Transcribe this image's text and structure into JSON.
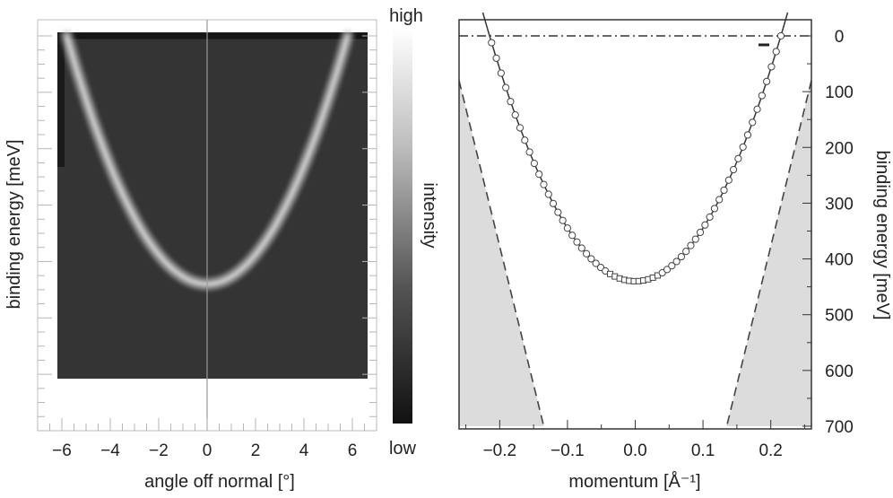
{
  "colorbar": {
    "high_label": "high",
    "low_label": "low",
    "label": "intensity"
  },
  "chart_data": [
    {
      "type": "heatmap",
      "xlabel": "angle off normal [°]",
      "ylabel": "binding energy [meV]",
      "xlim": [
        -7,
        7
      ],
      "ylim": [
        0,
        700
      ],
      "x_ticks": [
        -6,
        -4,
        -2,
        0,
        2,
        4,
        6
      ],
      "x_tick_labels": [
        "−6",
        "−4",
        "−2",
        "0",
        "2",
        "4",
        "6"
      ],
      "band": {
        "minimum_binding_energy": 440,
        "minimum_angle": 0,
        "fermi_crossings_angle": [
          -5.8,
          5.8
        ]
      },
      "reference_line_angle": 0,
      "colormap": "grayscale (low = black, high = white)"
    },
    {
      "type": "scatter",
      "xlabel": "momentum [Å⁻¹]",
      "ylabel": "binding energy [meV]",
      "xlim": [
        -0.26,
        0.26
      ],
      "ylim": [
        0,
        700
      ],
      "y_inverted": true,
      "y_axis_side": "right",
      "x_ticks": [
        -0.2,
        -0.1,
        0.0,
        0.1,
        0.2
      ],
      "x_tick_labels": [
        "−0.2",
        "−0.1",
        "0.0",
        "0.1",
        "0.2"
      ],
      "y_ticks": [
        0,
        100,
        200,
        300,
        400,
        500,
        600,
        700
      ],
      "y_tick_labels": [
        "0",
        "100",
        "200",
        "300",
        "400",
        "500",
        "600",
        "700"
      ],
      "fermi_level_energy": 0,
      "dispersion_fit": {
        "band_bottom_energy": 440,
        "kF": 0.215
      },
      "momentum_points": [
        -0.212,
        -0.205,
        -0.198,
        -0.191,
        -0.184,
        -0.177,
        -0.17,
        -0.163,
        -0.156,
        -0.149,
        -0.142,
        -0.135,
        -0.128,
        -0.121,
        -0.114,
        -0.107,
        -0.1,
        -0.093,
        -0.086,
        -0.079,
        -0.072,
        -0.065,
        -0.058,
        -0.051,
        -0.044,
        -0.037,
        -0.03,
        -0.023,
        -0.016,
        -0.009,
        -0.002,
        0.005,
        0.012,
        0.019,
        0.026,
        0.033,
        0.04,
        0.047,
        0.054,
        0.061,
        0.068,
        0.075,
        0.082,
        0.089,
        0.096,
        0.103,
        0.11,
        0.117,
        0.124,
        0.131,
        0.138,
        0.145,
        0.152,
        0.159,
        0.166,
        0.173,
        0.18,
        0.187,
        0.194,
        0.201,
        0.208,
        0.215
      ],
      "shaded_boundary": [
        {
          "momentum": -0.26,
          "energy": 80
        },
        {
          "momentum": -0.135,
          "energy": 700
        },
        {
          "momentum": 0.135,
          "energy": 700
        },
        {
          "momentum": 0.26,
          "energy": 80
        }
      ]
    }
  ]
}
